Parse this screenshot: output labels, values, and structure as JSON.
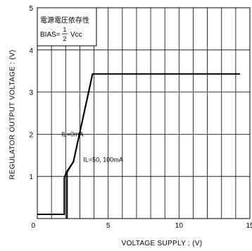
{
  "chart_data": {
    "type": "line",
    "xlabel": "VOLTAGE  SUPPLY : (V)",
    "ylabel": "REGULATOR  OUTPUT  VOLTAGE : (V)",
    "xlim": [
      0,
      15
    ],
    "ylim": [
      0,
      5
    ],
    "x_ticks": [
      "0",
      "5",
      "10",
      "15"
    ],
    "y_ticks": [
      "5",
      "4",
      "3",
      "2",
      "1"
    ],
    "grid": true,
    "legend_box": {
      "line1": "電源電圧依存性",
      "bias_prefix": "BIAS=",
      "frac_num": "1",
      "frac_den": "2",
      "bias_suffix": "Vcc"
    },
    "series": [
      {
        "name": "IL=0mA",
        "x": [
          0,
          1.9,
          1.9,
          2.05,
          2.55,
          3.9,
          14.3
        ],
        "y": [
          0.1,
          0.1,
          0.97,
          1.1,
          1.35,
          3.43,
          3.43
        ]
      },
      {
        "name": "IL=50, 100mA",
        "x": [
          2.1,
          2.1,
          2.55,
          3.9
        ],
        "y": [
          0,
          1.1,
          1.35,
          3.43
        ]
      }
    ],
    "annotations": [
      {
        "text": "IL=0mA",
        "x": 1.7,
        "y": 1.95
      },
      {
        "text": "IL=50, 100mA",
        "x": 3.25,
        "y": 1.35
      }
    ],
    "colors": {
      "line": "#000000",
      "grid": "#000000",
      "background": "#ffffff"
    }
  }
}
